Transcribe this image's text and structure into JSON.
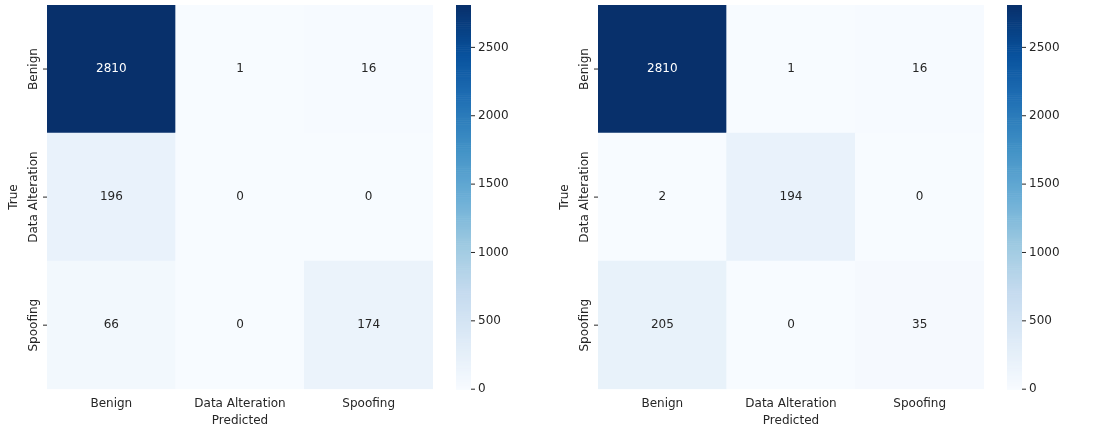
{
  "chart_data": [
    {
      "type": "heatmap",
      "xlabel": "Predicted",
      "ylabel": "True",
      "categories": [
        "Benign",
        "Data Alteration",
        "Spoofing"
      ],
      "y_categories": [
        "Benign",
        "Data Alteration",
        "Spoofing"
      ],
      "cells": [
        [
          2810,
          1,
          16
        ],
        [
          196,
          0,
          0
        ],
        [
          66,
          0,
          174
        ]
      ],
      "data_labels": true,
      "clim": [
        0,
        2810
      ],
      "cticks": [
        0,
        500,
        1000,
        1500,
        2000,
        2500
      ]
    },
    {
      "type": "heatmap",
      "xlabel": "Predicted",
      "ylabel": "True",
      "categories": [
        "Benign",
        "Data Alteration",
        "Spoofing"
      ],
      "y_categories": [
        "Benign",
        "Data Alteration",
        "Spoofing"
      ],
      "cells": [
        [
          2810,
          1,
          16
        ],
        [
          2,
          194,
          0
        ],
        [
          205,
          0,
          35
        ]
      ],
      "data_labels": true,
      "clim": [
        0,
        2810
      ],
      "cticks": [
        0,
        500,
        1000,
        1500,
        2000,
        2500
      ]
    }
  ]
}
